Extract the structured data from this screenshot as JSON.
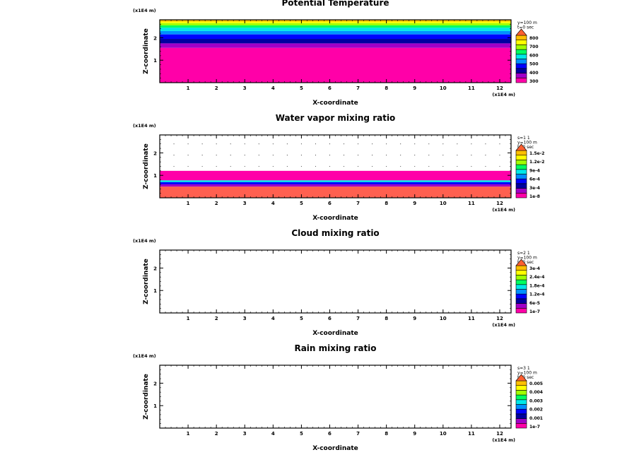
{
  "chart_data": [
    {
      "type": "heatmap",
      "title": "Potential Temperature",
      "xlabel": "X-coordinate",
      "ylabel": "Z-coordinate",
      "x_unit": "(x1E4 m)",
      "z_unit": "(x1E4 m)",
      "xlim": [
        0,
        12.4
      ],
      "ylim": [
        0,
        2.8
      ],
      "xticks": [
        "1",
        "2",
        "3",
        "4",
        "5",
        "6",
        "7",
        "8",
        "9",
        "10",
        "11",
        "12"
      ],
      "yticks": [
        "1",
        "2"
      ],
      "info": [
        "y=100 m",
        "t=0 sec"
      ],
      "legend_labels": [
        "800",
        "700",
        "600",
        "500",
        "400",
        "300"
      ],
      "legend_colors": [
        "#ff00a8",
        "#a000c8",
        "#0000a0",
        "#0000ff",
        "#0090ff",
        "#00e8e8",
        "#00ff60",
        "#a0ff00",
        "#ffff00",
        "#ffc000",
        "#ff6030"
      ],
      "bands": [
        {
          "z0": 0.0,
          "z1": 1.55,
          "color": "#ff00a8"
        },
        {
          "z0": 1.55,
          "z1": 1.75,
          "color": "#a000c8"
        },
        {
          "z0": 1.75,
          "z1": 1.95,
          "color": "#0000a0"
        },
        {
          "z0": 1.95,
          "z1": 2.15,
          "color": "#0000ff"
        },
        {
          "z0": 2.15,
          "z1": 2.3,
          "color": "#0090ff"
        },
        {
          "z0": 2.3,
          "z1": 2.45,
          "color": "#00e8e8"
        },
        {
          "z0": 2.45,
          "z1": 2.55,
          "color": "#00ff60"
        },
        {
          "z0": 2.55,
          "z1": 2.65,
          "color": "#a0ff00"
        },
        {
          "z0": 2.65,
          "z1": 2.72,
          "color": "#ffff00"
        },
        {
          "z0": 2.72,
          "z1": 2.8,
          "color": "#ffc000"
        }
      ],
      "dots": false
    },
    {
      "type": "heatmap",
      "title": "Water vapor mixing ratio",
      "xlabel": "X-coordinate",
      "ylabel": "Z-coordinate",
      "x_unit": "(x1E4 m)",
      "z_unit": "(x1E4 m)",
      "xlim": [
        0,
        12.4
      ],
      "ylim": [
        0,
        2.8
      ],
      "xticks": [
        "1",
        "2",
        "3",
        "4",
        "5",
        "6",
        "7",
        "8",
        "9",
        "10",
        "11",
        "12"
      ],
      "yticks": [
        "1",
        "2"
      ],
      "info": [
        "s=1 1",
        "y=100 m",
        "t=0 sec"
      ],
      "legend_labels": [
        "1.5e-2",
        "1.2e-2",
        "9e-4",
        "6e-4",
        "3e-4",
        "1e-8"
      ],
      "legend_colors": [
        "#ff00a8",
        "#a000c8",
        "#0000a0",
        "#0000ff",
        "#0090ff",
        "#00e8e8",
        "#00ff60",
        "#a0ff00",
        "#ffff00",
        "#ffc000",
        "#ff6030"
      ],
      "bands": [
        {
          "z0": 0.0,
          "z1": 0.5,
          "color": "#ff6050"
        },
        {
          "z0": 0.5,
          "z1": 0.6,
          "color": "#a000c8"
        },
        {
          "z0": 0.6,
          "z1": 0.7,
          "color": "#0000ff"
        },
        {
          "z0": 0.7,
          "z1": 0.78,
          "color": "#00e8e8"
        },
        {
          "z0": 0.78,
          "z1": 1.2,
          "color": "#ff00a8"
        }
      ],
      "dots": true
    },
    {
      "type": "heatmap",
      "title": "Cloud mixing ratio",
      "xlabel": "X-coordinate",
      "ylabel": "Z-coordinate",
      "x_unit": "(x1E4 m)",
      "z_unit": "(x1E4 m)",
      "xlim": [
        0,
        12.4
      ],
      "ylim": [
        0,
        2.8
      ],
      "xticks": [
        "1",
        "2",
        "3",
        "4",
        "5",
        "6",
        "7",
        "8",
        "9",
        "10",
        "11",
        "12"
      ],
      "yticks": [
        "1",
        "2"
      ],
      "info": [
        "s=2 1",
        "y=100 m",
        "t=0 sec"
      ],
      "legend_labels": [
        "3e-4",
        "2.4e-4",
        "1.8e-4",
        "1.2e-4",
        "6e-5",
        "1e-7"
      ],
      "legend_colors": [
        "#ff00a8",
        "#a000c8",
        "#0000a0",
        "#0000ff",
        "#0090ff",
        "#00e8e8",
        "#00ff60",
        "#a0ff00",
        "#ffff00",
        "#ffc000",
        "#ff6030"
      ],
      "bands": [],
      "dots": false
    },
    {
      "type": "heatmap",
      "title": "Rain mixing ratio",
      "xlabel": "X-coordinate",
      "ylabel": "Z-coordinate",
      "x_unit": "(x1E4 m)",
      "z_unit": "(x1E4 m)",
      "xlim": [
        0,
        12.4
      ],
      "ylim": [
        0,
        2.8
      ],
      "xticks": [
        "1",
        "2",
        "3",
        "4",
        "5",
        "6",
        "7",
        "8",
        "9",
        "10",
        "11",
        "12"
      ],
      "yticks": [
        "1",
        "2"
      ],
      "info": [
        "s=3 1",
        "y=100 m",
        "t=0 sec"
      ],
      "legend_labels": [
        "0.005",
        "0.004",
        "0.003",
        "0.002",
        "0.001",
        "1e-7"
      ],
      "legend_colors": [
        "#ff00a8",
        "#a000c8",
        "#0000a0",
        "#0000ff",
        "#0090ff",
        "#00e8e8",
        "#00ff60",
        "#a0ff00",
        "#ffff00",
        "#ffc000",
        "#ff6030"
      ],
      "bands": [],
      "dots": false
    }
  ]
}
